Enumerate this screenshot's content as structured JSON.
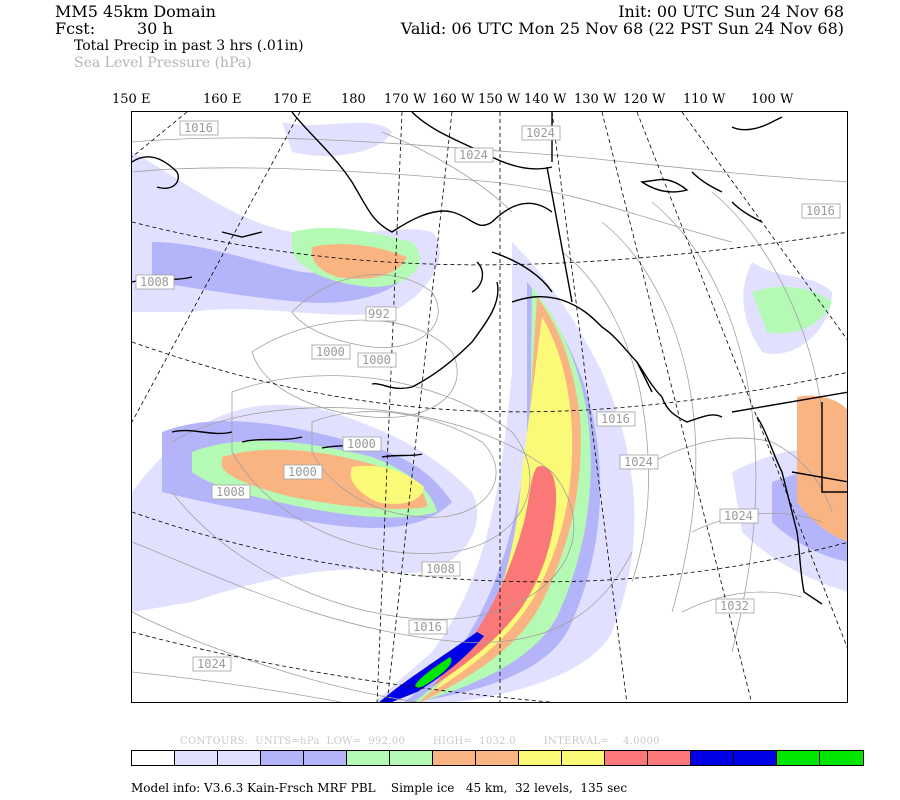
{
  "header": {
    "domain_title": "MM5 45km Domain",
    "init": "Init: 00 UTC Sun 24 Nov 68",
    "fcst_label": "Fcst:",
    "fcst_value": "30 h",
    "valid": "Valid: 06 UTC Mon 25 Nov 68 (22 PST Sun 24 Nov 68)",
    "field_primary": "Total Precip in past 3 hrs (.01in)",
    "field_secondary": "Sea Level Pressure (hPa)"
  },
  "longitude_labels": [
    "150 E",
    "160 E",
    "170 E",
    "180",
    "170 W",
    "160 W",
    "150 W",
    "140 W",
    "130 W",
    "120 W",
    "110 W",
    "100 W"
  ],
  "pressure_labels": [
    "1016",
    "1024",
    "1024",
    "1016",
    "1008",
    "992",
    "1000",
    "1000",
    "1000",
    "1016",
    "1024",
    "1000",
    "1008",
    "1008",
    "1024",
    "1016",
    "1032",
    "1024"
  ],
  "contours_info": "CONTOURS:  UNITS=hPa  LOW=  992.00        HIGH=  1032.0        INTERVAL=    4.0000",
  "colorbar": {
    "colors": [
      "#ffffff",
      "#e1e1ff",
      "#e1e1ff",
      "#b4b4fa",
      "#b4b4fa",
      "#b4fab4",
      "#b4fab4",
      "#fab482",
      "#fab482",
      "#fafa78",
      "#fafa78",
      "#fa7878",
      "#fa7878",
      "#0000e6",
      "#0000e6",
      "#00e600",
      "#00e600"
    ]
  },
  "model_info": "Model info: V3.6.3 Kain-Frsch MRF PBL    Simple ice   45 km,  32 levels,  135 sec",
  "colors": {
    "slp_contour": "#a0a0a0",
    "header_faint": "#b4b4b4"
  }
}
